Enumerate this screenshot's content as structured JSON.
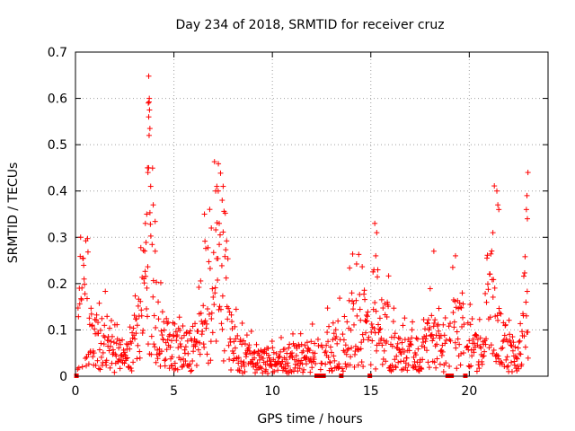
{
  "chart_data": {
    "type": "scatter",
    "title": "Day 234 of 2018, SRMTID for receiver cruz",
    "xlabel": "GPS time / hours",
    "ylabel": "SRMTID / TECUs",
    "xlim": [
      0,
      24
    ],
    "ylim": [
      0,
      0.7
    ],
    "x_ticks": [
      0,
      5,
      10,
      15,
      20
    ],
    "x_tick_labels": [
      "0",
      "5",
      "10",
      "15",
      "20"
    ],
    "y_ticks": [
      0,
      0.1,
      0.2,
      0.3,
      0.4,
      0.5,
      0.6,
      0.7
    ],
    "y_tick_labels": [
      "0",
      "0.1",
      "0.2",
      "0.3",
      "0.4",
      "0.5",
      "0.6",
      "0.7"
    ],
    "grid": true,
    "marker": "plus",
    "color": "#ff0000",
    "envelope": [
      [
        0.0,
        0.12
      ],
      [
        0.3,
        0.2
      ],
      [
        0.6,
        0.18
      ],
      [
        0.9,
        0.12
      ],
      [
        1.2,
        0.1
      ],
      [
        1.5,
        0.13
      ],
      [
        1.8,
        0.08
      ],
      [
        2.1,
        0.07
      ],
      [
        2.4,
        0.08
      ],
      [
        2.7,
        0.06
      ],
      [
        3.0,
        0.1
      ],
      [
        3.3,
        0.18
      ],
      [
        3.5,
        0.27
      ],
      [
        3.7,
        0.4
      ],
      [
        3.9,
        0.3
      ],
      [
        4.1,
        0.18
      ],
      [
        4.4,
        0.13
      ],
      [
        4.7,
        0.11
      ],
      [
        5.0,
        0.1
      ],
      [
        5.3,
        0.09
      ],
      [
        5.6,
        0.08
      ],
      [
        5.9,
        0.09
      ],
      [
        6.2,
        0.11
      ],
      [
        6.5,
        0.16
      ],
      [
        6.8,
        0.24
      ],
      [
        7.0,
        0.27
      ],
      [
        7.2,
        0.3
      ],
      [
        7.5,
        0.26
      ],
      [
        7.8,
        0.14
      ],
      [
        8.1,
        0.09
      ],
      [
        8.4,
        0.07
      ],
      [
        8.7,
        0.06
      ],
      [
        9.0,
        0.06
      ],
      [
        9.3,
        0.05
      ],
      [
        9.6,
        0.05
      ],
      [
        10.0,
        0.045
      ],
      [
        10.4,
        0.05
      ],
      [
        10.8,
        0.055
      ],
      [
        11.2,
        0.06
      ],
      [
        11.6,
        0.06
      ],
      [
        12.0,
        0.07
      ],
      [
        12.4,
        0.08
      ],
      [
        12.8,
        0.09
      ],
      [
        13.2,
        0.09
      ],
      [
        13.6,
        0.11
      ],
      [
        14.0,
        0.15
      ],
      [
        14.3,
        0.17
      ],
      [
        14.6,
        0.14
      ],
      [
        14.9,
        0.12
      ],
      [
        15.2,
        0.16
      ],
      [
        15.5,
        0.12
      ],
      [
        15.8,
        0.15
      ],
      [
        16.1,
        0.09
      ],
      [
        16.5,
        0.08
      ],
      [
        16.9,
        0.08
      ],
      [
        17.3,
        0.07
      ],
      [
        17.7,
        0.1
      ],
      [
        18.0,
        0.13
      ],
      [
        18.3,
        0.12
      ],
      [
        18.6,
        0.09
      ],
      [
        18.9,
        0.08
      ],
      [
        19.2,
        0.15
      ],
      [
        19.5,
        0.16
      ],
      [
        19.8,
        0.09
      ],
      [
        20.1,
        0.12
      ],
      [
        20.4,
        0.1
      ],
      [
        20.7,
        0.12
      ],
      [
        21.0,
        0.2
      ],
      [
        21.3,
        0.25
      ],
      [
        21.5,
        0.13
      ],
      [
        21.8,
        0.1
      ],
      [
        22.1,
        0.08
      ],
      [
        22.4,
        0.05
      ],
      [
        22.7,
        0.1
      ],
      [
        22.9,
        0.3
      ]
    ],
    "peaks": [
      [
        3.72,
        0.648
      ],
      [
        3.75,
        0.6
      ],
      [
        3.7,
        0.59
      ],
      [
        3.76,
        0.575
      ],
      [
        3.72,
        0.56
      ],
      [
        3.78,
        0.535
      ],
      [
        3.74,
        0.52
      ],
      [
        3.66,
        0.45
      ],
      [
        3.68,
        0.44
      ],
      [
        3.62,
        0.35
      ],
      [
        3.82,
        0.41
      ],
      [
        3.55,
        0.33
      ],
      [
        3.95,
        0.37
      ],
      [
        4.05,
        0.27
      ],
      [
        7.18,
        0.41
      ],
      [
        7.12,
        0.4
      ],
      [
        7.25,
        0.4
      ],
      [
        7.5,
        0.41
      ],
      [
        7.45,
        0.38
      ],
      [
        6.55,
        0.35
      ],
      [
        6.9,
        0.32
      ],
      [
        7.3,
        0.33
      ],
      [
        15.2,
        0.33
      ],
      [
        15.3,
        0.31
      ],
      [
        15.25,
        0.26
      ],
      [
        18.2,
        0.27
      ],
      [
        19.3,
        0.26
      ],
      [
        21.2,
        0.31
      ],
      [
        21.4,
        0.4
      ],
      [
        21.45,
        0.37
      ],
      [
        21.5,
        0.36
      ],
      [
        22.98,
        0.44
      ],
      [
        22.93,
        0.39
      ],
      [
        22.9,
        0.36
      ],
      [
        22.95,
        0.34
      ]
    ],
    "gap_markers_x": [
      0.05,
      12.25,
      12.4,
      12.6,
      13.5,
      14.95,
      18.9,
      19.1,
      19.8
    ]
  }
}
